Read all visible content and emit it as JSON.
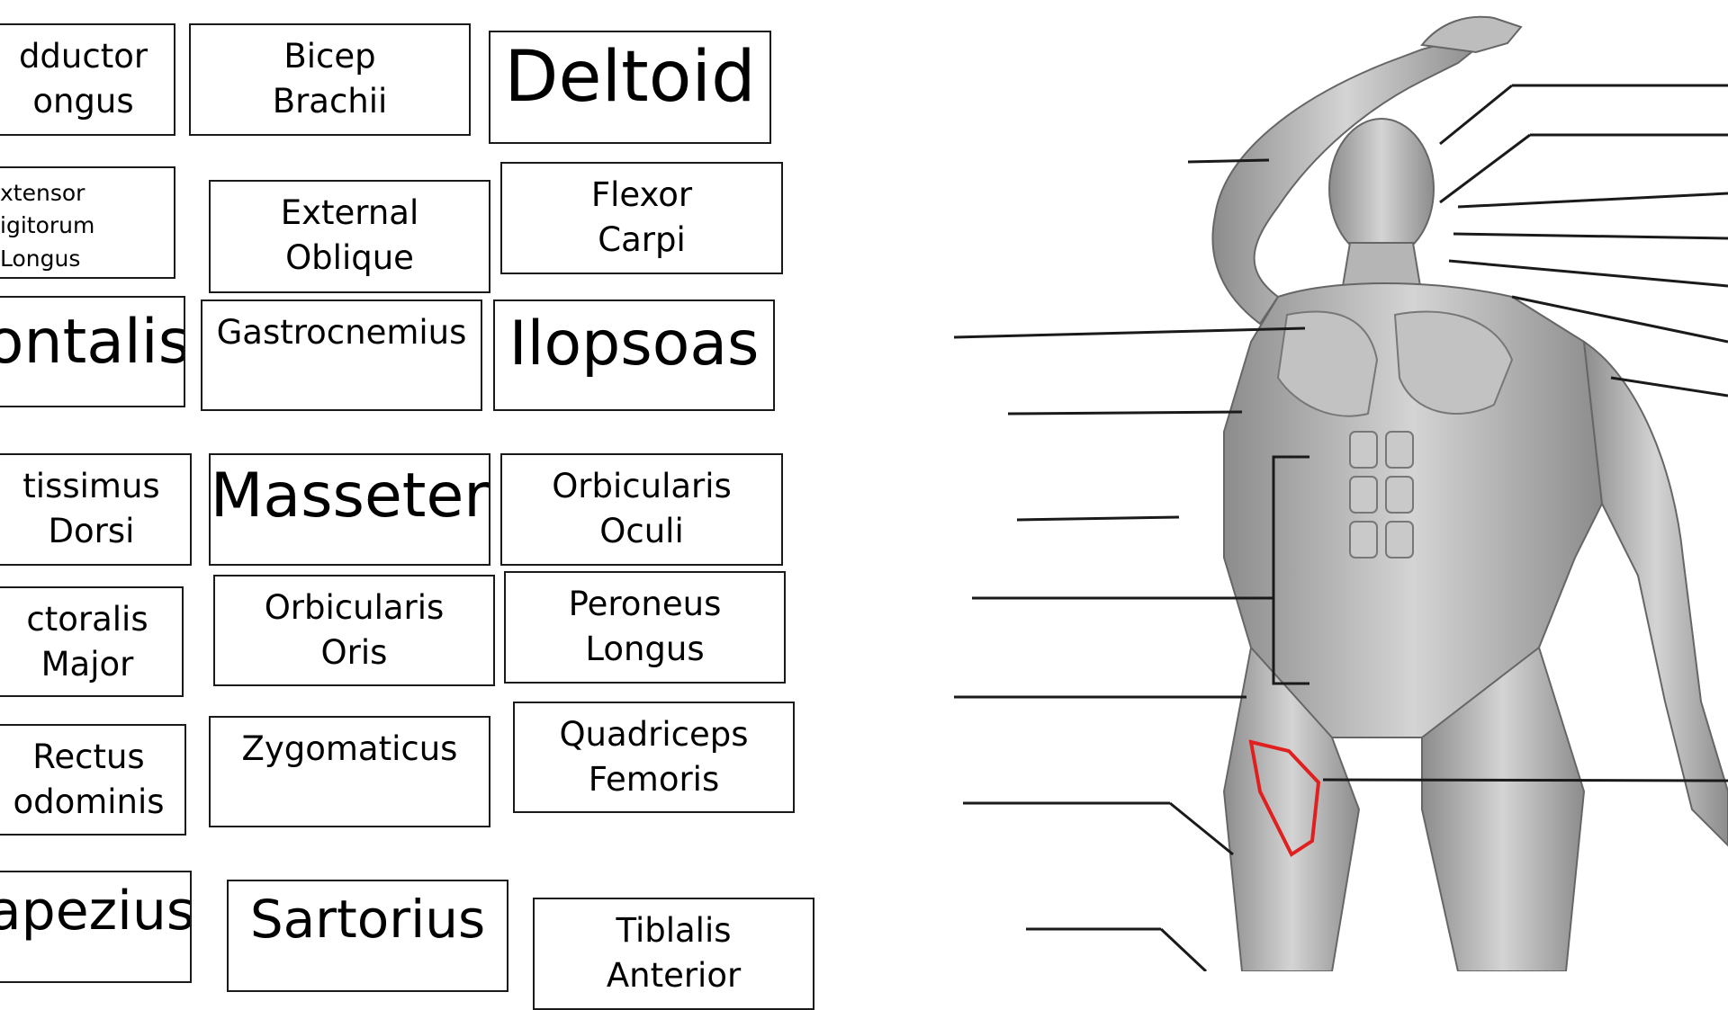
{
  "cards": [
    {
      "id": "adductor",
      "lines": [
        "dductor",
        "ongus"
      ]
    },
    {
      "id": "bicep",
      "lines": [
        "Bicep",
        "Brachii"
      ]
    },
    {
      "id": "deltoid",
      "lines": [
        "Deltoid"
      ]
    },
    {
      "id": "extensor",
      "lines": [
        "xtensor",
        "igitorum",
        "Longus"
      ]
    },
    {
      "id": "external-oblique",
      "lines": [
        "External",
        "Oblique"
      ]
    },
    {
      "id": "flexor",
      "lines": [
        "Flexor",
        "Carpi"
      ]
    },
    {
      "id": "frontalis",
      "lines": [
        "ontalis"
      ]
    },
    {
      "id": "gastrocnemius",
      "lines": [
        "Gastrocnemius"
      ]
    },
    {
      "id": "iliopsoas",
      "lines": [
        "Ilopsoas"
      ]
    },
    {
      "id": "latissimus",
      "lines": [
        "tissimus",
        "Dorsi"
      ]
    },
    {
      "id": "masseter",
      "lines": [
        "Masseter"
      ]
    },
    {
      "id": "orbicularis-oculi",
      "lines": [
        "Orbicularis",
        "Oculi"
      ]
    },
    {
      "id": "pectoralis",
      "lines": [
        "ctoralis",
        "Major"
      ]
    },
    {
      "id": "orbicularis-oris",
      "lines": [
        "Orbicularis",
        "Oris"
      ]
    },
    {
      "id": "peroneus",
      "lines": [
        "Peroneus",
        "Longus"
      ]
    },
    {
      "id": "rectus",
      "lines": [
        "Rectus",
        "odominis"
      ]
    },
    {
      "id": "zygomaticus",
      "lines": [
        "Zygomaticus"
      ]
    },
    {
      "id": "quadriceps",
      "lines": [
        "Quadriceps",
        "Femoris"
      ]
    },
    {
      "id": "trapezius",
      "lines": [
        "apezius"
      ]
    },
    {
      "id": "sartorius",
      "lines": [
        "Sartorius"
      ]
    },
    {
      "id": "tibialis",
      "lines": [
        "Tiblalis",
        "Anterior"
      ]
    }
  ],
  "colors": {
    "highlight": "#e02020",
    "outline": "#1a1a1a",
    "muscle": "#9a9a9a"
  },
  "figure": {
    "icon": "muscular-system-anterior-view"
  }
}
